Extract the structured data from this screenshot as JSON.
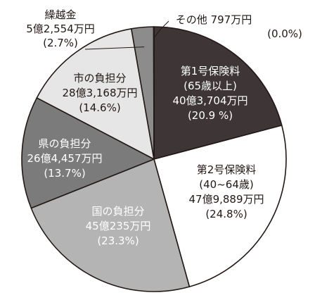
{
  "chart_data": {
    "type": "pie",
    "title": "",
    "unit": "万円",
    "slices": [
      {
        "name": "第1号保険料",
        "sub": "(65歳以上)",
        "amount": "40億3,704万円",
        "percent_label": "(20.9 %)",
        "value": 20.9,
        "color": "#3d3536",
        "text_color": "#ffffff"
      },
      {
        "name": "第2号保険料",
        "sub": "(40~64歳)",
        "amount": "47億9,889万円",
        "percent_label": "(24.8%)",
        "value": 24.8,
        "color": "#ffffff",
        "text_color": "#231815"
      },
      {
        "name": "国の負担分",
        "sub": "",
        "amount": "45億235万円",
        "percent_label": "(23.3%)",
        "value": 23.3,
        "color": "#b4b4b4",
        "text_color": "#ffffff"
      },
      {
        "name": "県の負担分",
        "sub": "",
        "amount": "26億4,457万円",
        "percent_label": "(13.7%)",
        "value": 13.7,
        "color": "#7b7b7b",
        "text_color": "#ffffff"
      },
      {
        "name": "市の負担分",
        "sub": "",
        "amount": "28億3,168万円",
        "percent_label": "(14.6%)",
        "value": 14.6,
        "color": "#e6e6e6",
        "text_color": "#231815"
      },
      {
        "name": "繰越金",
        "sub": "",
        "amount": "5億2,554万円",
        "percent_label": "(2.7%)",
        "value": 2.7,
        "color": "#8c8c8c",
        "text_color": "#231815"
      },
      {
        "name": "その他",
        "sub": "",
        "amount": "797万円",
        "percent_label": "(0.0%)",
        "value": 0.04,
        "color": "#ffffff",
        "text_color": "#231815"
      }
    ]
  }
}
